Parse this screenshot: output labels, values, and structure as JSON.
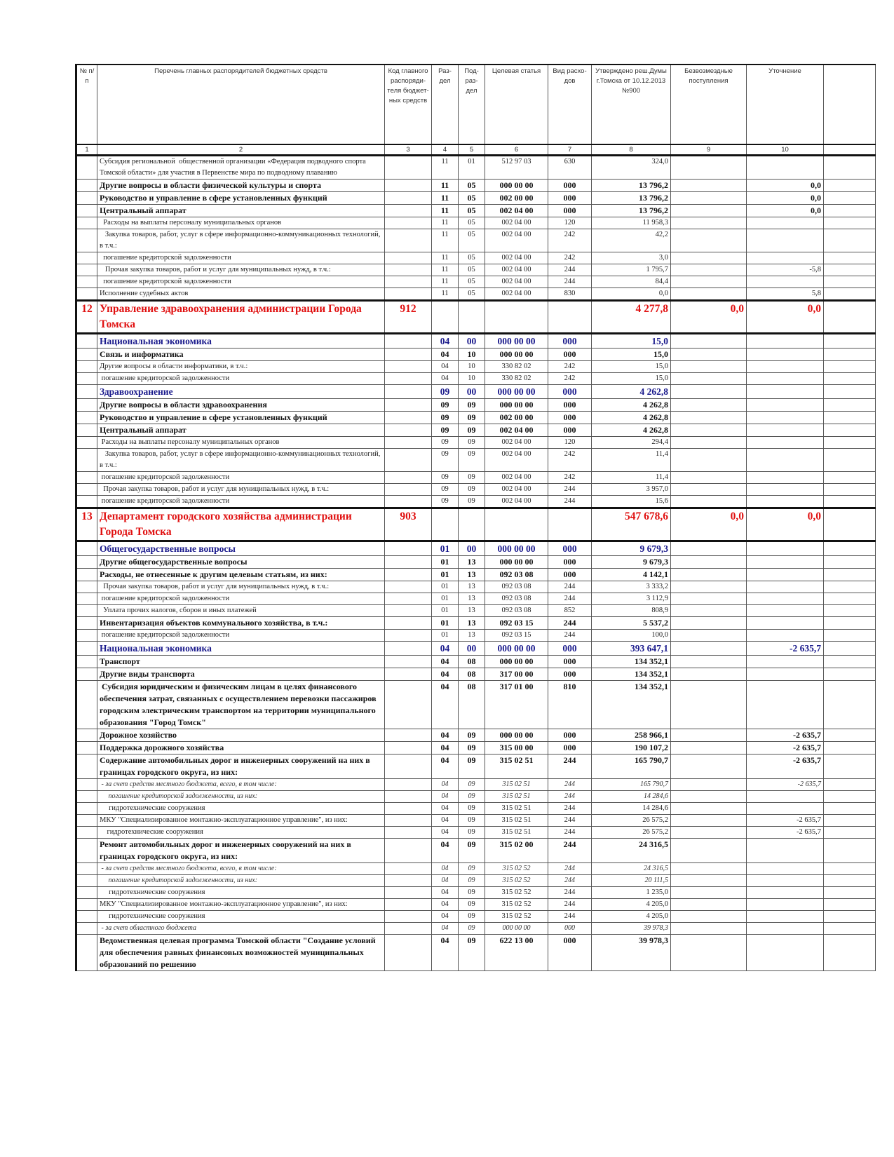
{
  "headers": [
    "№ п/п",
    "Перечень главных распорядителей бюджетных средств",
    "Код главного распоряди-теля бюджет-ных средств",
    "Раз-дел",
    "Под-раз-дел",
    "Целевая статья",
    "Вид расхо-дов",
    "Утверждено реш.Думы г.Томска от 10.12.2013 №900",
    "Безвозмездные поступления",
    "Уточнение",
    ""
  ],
  "column_numbers": [
    "1",
    "2",
    "3",
    "4",
    "5",
    "6",
    "7",
    "8",
    "9",
    "10",
    ""
  ],
  "rows": [
    {
      "kind": "normal",
      "n": "",
      "name": "Субсидия региональной  общественной организации «Федерация подводного спорта Томской области» для участия в Первенстве мира по подводному плаванию",
      "code": "",
      "rz": "11",
      "pr": "01",
      "cs": "512 97 03",
      "vr": "630",
      "v8": "324,0",
      "v9": "",
      "v10": ""
    },
    {
      "kind": "bold",
      "n": "",
      "name": "Другие вопросы в области физической культуры и спорта",
      "code": "",
      "rz": "11",
      "pr": "05",
      "cs": "000 00 00",
      "vr": "000",
      "v8": "13 796,2",
      "v9": "",
      "v10": "0,0"
    },
    {
      "kind": "bold",
      "n": "",
      "name": "Руководство и управление в сфере установленных функций",
      "code": "",
      "rz": "11",
      "pr": "05",
      "cs": "002 00 00",
      "vr": "000",
      "v8": "13 796,2",
      "v9": "",
      "v10": "0,0"
    },
    {
      "kind": "bold",
      "n": "",
      "name": "Центральный аппарат",
      "code": "",
      "rz": "11",
      "pr": "05",
      "cs": "002 04 00",
      "vr": "000",
      "v8": "13 796,2",
      "v9": "",
      "v10": "0,0"
    },
    {
      "kind": "normal",
      "n": "",
      "name": "  Расходы на выплаты персоналу муниципальных органов",
      "code": "",
      "rz": "11",
      "pr": "05",
      "cs": "002 04 00",
      "vr": "120",
      "v8": "11 958,3",
      "v9": "",
      "v10": ""
    },
    {
      "kind": "normal",
      "n": "",
      "name": "   Закупка товаров, работ, услуг в сфере информационно-коммуникационных технологий, в т.ч.:",
      "code": "",
      "rz": "11",
      "pr": "05",
      "cs": "002 04 00",
      "vr": "242",
      "v8": "42,2",
      "v9": "",
      "v10": ""
    },
    {
      "kind": "normal",
      "n": "",
      "name": "  погашение кредиторской задолженности",
      "code": "",
      "rz": "11",
      "pr": "05",
      "cs": "002 04 00",
      "vr": "242",
      "v8": "3,0",
      "v9": "",
      "v10": ""
    },
    {
      "kind": "normal",
      "n": "",
      "name": "   Прочая закупка товаров, работ и услуг для муниципальных нужд, в т.ч.:",
      "code": "",
      "rz": "11",
      "pr": "05",
      "cs": "002 04 00",
      "vr": "244",
      "v8": "1 795,7",
      "v9": "",
      "v10": "-5,8"
    },
    {
      "kind": "normal",
      "n": "",
      "name": "  погашение кредиторской задолженности",
      "code": "",
      "rz": "11",
      "pr": "05",
      "cs": "002 04 00",
      "vr": "244",
      "v8": "84,4",
      "v9": "",
      "v10": ""
    },
    {
      "kind": "normal",
      "n": "",
      "name": "Исполнение судебных актов",
      "code": "",
      "rz": "11",
      "pr": "05",
      "cs": "002 04 00",
      "vr": "830",
      "v8": "0,0",
      "v9": "",
      "v10": "5,8"
    },
    {
      "kind": "red",
      "n": "12",
      "name": "Управление здравоохранения администрации Города Томска",
      "code": "912",
      "rz": "",
      "pr": "",
      "cs": "",
      "vr": "",
      "v8": "4 277,8",
      "v9": "0,0",
      "v10": "0,0"
    },
    {
      "kind": "blue",
      "n": "",
      "name": "Национальная экономика",
      "code": "",
      "rz": "04",
      "pr": "00",
      "cs": "000 00 00",
      "vr": "000",
      "v8": "15,0",
      "v9": "",
      "v10": ""
    },
    {
      "kind": "bold",
      "n": "",
      "name": "Связь и информатика",
      "code": "",
      "rz": "04",
      "pr": "10",
      "cs": "000 00 00",
      "vr": "000",
      "v8": "15,0",
      "v9": "",
      "v10": ""
    },
    {
      "kind": "normal",
      "n": "",
      "name": "Другие вопросы в области информатики, в т.ч.:",
      "code": "",
      "rz": "04",
      "pr": "10",
      "cs": "330 82 02",
      "vr": "242",
      "v8": "15,0",
      "v9": "",
      "v10": ""
    },
    {
      "kind": "normal",
      "n": "",
      "name": " погашение кредиторской задолженности",
      "code": "",
      "rz": "04",
      "pr": "10",
      "cs": "330 82 02",
      "vr": "242",
      "v8": "15,0",
      "v9": "",
      "v10": ""
    },
    {
      "kind": "blue",
      "n": "",
      "name": "Здравоохранение",
      "code": "",
      "rz": "09",
      "pr": "00",
      "cs": "000 00 00",
      "vr": "000",
      "v8": "4 262,8",
      "v9": "",
      "v10": ""
    },
    {
      "kind": "bold",
      "n": "",
      "name": "Другие вопросы в области здравоохранения",
      "code": "",
      "rz": "09",
      "pr": "09",
      "cs": "000 00 00",
      "vr": "000",
      "v8": "4 262,8",
      "v9": "",
      "v10": ""
    },
    {
      "kind": "bold",
      "n": "",
      "name": "Руководство и управление в сфере установленных функций",
      "code": "",
      "rz": "09",
      "pr": "09",
      "cs": "002 00 00",
      "vr": "000",
      "v8": "4 262,8",
      "v9": "",
      "v10": ""
    },
    {
      "kind": "bold",
      "n": "",
      "name": "Центральный аппарат",
      "code": "",
      "rz": "09",
      "pr": "09",
      "cs": "002 04 00",
      "vr": "000",
      "v8": "4 262,8",
      "v9": "",
      "v10": ""
    },
    {
      "kind": "normal",
      "n": "",
      "name": " Расходы на выплаты персоналу муниципальных органов",
      "code": "",
      "rz": "09",
      "pr": "09",
      "cs": "002 04 00",
      "vr": "120",
      "v8": "294,4",
      "v9": "",
      "v10": ""
    },
    {
      "kind": "normal",
      "n": "",
      "name": "   Закупка товаров, работ, услуг в сфере информационно-коммуникационных технологий, в т.ч.:",
      "code": "",
      "rz": "09",
      "pr": "09",
      "cs": "002 04 00",
      "vr": "242",
      "v8": "11,4",
      "v9": "",
      "v10": ""
    },
    {
      "kind": "normal",
      "n": "",
      "name": " погашение кредиторской задолженности",
      "code": "",
      "rz": "09",
      "pr": "09",
      "cs": "002 04 00",
      "vr": "242",
      "v8": "11,4",
      "v9": "",
      "v10": ""
    },
    {
      "kind": "normal",
      "n": "",
      "name": "  Прочая закупка товаров, работ и услуг для муниципальных нужд, в т.ч.:",
      "code": "",
      "rz": "09",
      "pr": "09",
      "cs": "002 04 00",
      "vr": "244",
      "v8": "3 957,0",
      "v9": "",
      "v10": ""
    },
    {
      "kind": "normal",
      "n": "",
      "name": " погашение кредиторской задолженности",
      "code": "",
      "rz": "09",
      "pr": "09",
      "cs": "002 04 00",
      "vr": "244",
      "v8": "15,6",
      "v9": "",
      "v10": ""
    },
    {
      "kind": "red",
      "n": "13",
      "name": "Департамент городского хозяйства администрации Города Томска",
      "code": "903",
      "rz": "",
      "pr": "",
      "cs": "",
      "vr": "",
      "v8": "547 678,6",
      "v9": "0,0",
      "v10": "0,0"
    },
    {
      "kind": "blue",
      "n": "",
      "name": "Общегосударственные вопросы",
      "code": "",
      "rz": "01",
      "pr": "00",
      "cs": "000 00 00",
      "vr": "000",
      "v8": "9 679,3",
      "v9": "",
      "v10": ""
    },
    {
      "kind": "bold",
      "n": "",
      "name": "Другие общегосударственные вопросы",
      "code": "",
      "rz": "01",
      "pr": "13",
      "cs": "000 00 00",
      "vr": "000",
      "v8": "9 679,3",
      "v9": "",
      "v10": ""
    },
    {
      "kind": "bold",
      "n": "",
      "name": "Расходы, не отнесенные к другим целевым статьям, из них:",
      "code": "",
      "rz": "01",
      "pr": "13",
      "cs": "092 03 08",
      "vr": "000",
      "v8": "4 142,1",
      "v9": "",
      "v10": ""
    },
    {
      "kind": "normal",
      "n": "",
      "name": "  Прочая закупка товаров, работ и услуг для муниципальных нужд, в т.ч.:",
      "code": "",
      "rz": "01",
      "pr": "13",
      "cs": "092 03 08",
      "vr": "244",
      "v8": "3 333,2",
      "v9": "",
      "v10": ""
    },
    {
      "kind": "normal",
      "n": "",
      "name": " погашение кредиторской задолженности",
      "code": "",
      "rz": "01",
      "pr": "13",
      "cs": "092 03 08",
      "vr": "244",
      "v8": "3 112,9",
      "v9": "",
      "v10": ""
    },
    {
      "kind": "normal",
      "n": "",
      "name": "  Уплата прочих налогов, сборов и иных платежей",
      "code": "",
      "rz": "01",
      "pr": "13",
      "cs": "092 03 08",
      "vr": "852",
      "v8": "808,9",
      "v9": "",
      "v10": ""
    },
    {
      "kind": "bold",
      "n": "",
      "name": "Инвентаризация объектов коммунального хозяйства, в т.ч.:",
      "code": "",
      "rz": "01",
      "pr": "13",
      "cs": "092 03 15",
      "vr": "244",
      "v8": "5 537,2",
      "v9": "",
      "v10": ""
    },
    {
      "kind": "normal",
      "n": "",
      "name": " погашение кредиторской задолженности",
      "code": "",
      "rz": "01",
      "pr": "13",
      "cs": "092 03 15",
      "vr": "244",
      "v8": "100,0",
      "v9": "",
      "v10": ""
    },
    {
      "kind": "blue",
      "n": "",
      "name": "Национальная экономика",
      "code": "",
      "rz": "04",
      "pr": "00",
      "cs": "000 00 00",
      "vr": "000",
      "v8": "393 647,1",
      "v9": "",
      "v10": "-2 635,7"
    },
    {
      "kind": "bold",
      "n": "",
      "name": "Транспорт",
      "code": "",
      "rz": "04",
      "pr": "08",
      "cs": "000 00 00",
      "vr": "000",
      "v8": "134 352,1",
      "v9": "",
      "v10": ""
    },
    {
      "kind": "bold",
      "n": "",
      "name": "Другие виды транспорта",
      "code": "",
      "rz": "04",
      "pr": "08",
      "cs": "317 00 00",
      "vr": "000",
      "v8": "134 352,1",
      "v9": "",
      "v10": ""
    },
    {
      "kind": "bold",
      "n": "",
      "name": " Субсидия юридическим и физическим лицам в целях финансового обеспечения затрат, связанных с осуществлением перевозки пассажиров городским электрическим транспортом на территории муниципального образования \"Город Томск\"",
      "code": "",
      "rz": "04",
      "pr": "08",
      "cs": "317 01 00",
      "vr": "810",
      "v8": "134 352,1",
      "v9": "",
      "v10": ""
    },
    {
      "kind": "bold",
      "n": "",
      "name": "Дорожное хозяйство",
      "code": "",
      "rz": "04",
      "pr": "09",
      "cs": "000 00 00",
      "vr": "000",
      "v8": "258 966,1",
      "v9": "",
      "v10": "-2 635,7"
    },
    {
      "kind": "bold",
      "n": "",
      "name": "Поддержка дорожного хозяйства",
      "code": "",
      "rz": "04",
      "pr": "09",
      "cs": "315 00 00",
      "vr": "000",
      "v8": "190 107,2",
      "v9": "",
      "v10": "-2 635,7"
    },
    {
      "kind": "bold",
      "n": "",
      "name": "Содержание автомобильных дорог и инженерных сооружений на них в границах городского округа, из них:",
      "code": "",
      "rz": "04",
      "pr": "09",
      "cs": "315 02 51",
      "vr": "244",
      "v8": "165 790,7",
      "v9": "",
      "v10": "-2 635,7"
    },
    {
      "kind": "italic",
      "n": "",
      "name": " - за счет средств местного бюджета, всего, в том числе:",
      "code": "",
      "rz": "04",
      "pr": "09",
      "cs": "315 02 51",
      "vr": "244",
      "v8": "165 790,7",
      "v9": "",
      "v10": "-2 635,7"
    },
    {
      "kind": "italic",
      "n": "",
      "name": "     погашение кредиторской задолженности, из них:",
      "code": "",
      "rz": "04",
      "pr": "09",
      "cs": "315 02 51",
      "vr": "244",
      "v8": "14 284,6",
      "v9": "",
      "v10": ""
    },
    {
      "kind": "normal",
      "n": "",
      "name": "     гидротехнические сооружения",
      "code": "",
      "rz": "04",
      "pr": "09",
      "cs": "315 02 51",
      "vr": "244",
      "v8": "14 284,6",
      "v9": "",
      "v10": ""
    },
    {
      "kind": "normal",
      "n": "",
      "name": "МКУ \"Специализированное монтажно-эксплуатационное управление\", из них:",
      "code": "",
      "rz": "04",
      "pr": "09",
      "cs": "315 02 51",
      "vr": "244",
      "v8": "26 575,2",
      "v9": "",
      "v10": "-2 635,7"
    },
    {
      "kind": "normal",
      "n": "",
      "name": "    гидротехнические сооружения",
      "code": "",
      "rz": "04",
      "pr": "09",
      "cs": "315 02 51",
      "vr": "244",
      "v8": "26 575,2",
      "v9": "",
      "v10": "-2 635,7"
    },
    {
      "kind": "bold",
      "n": "",
      "name": "Ремонт автомобильных дорог и инженерных сооружений на них в границах городского округа, из них:",
      "code": "",
      "rz": "04",
      "pr": "09",
      "cs": "315 02 00",
      "vr": "244",
      "v8": "24 316,5",
      "v9": "",
      "v10": ""
    },
    {
      "kind": "italic",
      "n": "",
      "name": " - за счет средств местного бюджета, всего, в том числе:",
      "code": "",
      "rz": "04",
      "pr": "09",
      "cs": "315 02 52",
      "vr": "244",
      "v8": "24 316,5",
      "v9": "",
      "v10": ""
    },
    {
      "kind": "italic",
      "n": "",
      "name": "     погашение кредиторской задолженности, из них:",
      "code": "",
      "rz": "04",
      "pr": "09",
      "cs": "315 02 52",
      "vr": "244",
      "v8": "20 111,5",
      "v9": "",
      "v10": ""
    },
    {
      "kind": "normal",
      "n": "",
      "name": "     гидротехнические сооружения",
      "code": "",
      "rz": "04",
      "pr": "09",
      "cs": "315 02 52",
      "vr": "244",
      "v8": "1 235,0",
      "v9": "",
      "v10": ""
    },
    {
      "kind": "normal",
      "n": "",
      "name": "МКУ \"Специализированное монтажно-эксплуатационное управление\", из них:",
      "code": "",
      "rz": "04",
      "pr": "09",
      "cs": "315 02 52",
      "vr": "244",
      "v8": "4 205,0",
      "v9": "",
      "v10": ""
    },
    {
      "kind": "normal",
      "n": "",
      "name": "     гидротехнические сооружения",
      "code": "",
      "rz": "04",
      "pr": "09",
      "cs": "315 02 52",
      "vr": "244",
      "v8": "4 205,0",
      "v9": "",
      "v10": ""
    },
    {
      "kind": "italic",
      "n": "",
      "name": " - за счет областного бюджета",
      "code": "",
      "rz": "04",
      "pr": "09",
      "cs": "000 00 00",
      "vr": "000",
      "v8": "39 978,3",
      "v9": "",
      "v10": ""
    },
    {
      "kind": "bold",
      "n": "",
      "name": "Ведомственная целевая программа Томской области \"Создание условий для обеспечения равных финансовых возможностей муниципальных образований по решению",
      "code": "",
      "rz": "04",
      "pr": "09",
      "cs": "622 13 00",
      "vr": "000",
      "v8": "39 978,3",
      "v9": "",
      "v10": ""
    }
  ]
}
